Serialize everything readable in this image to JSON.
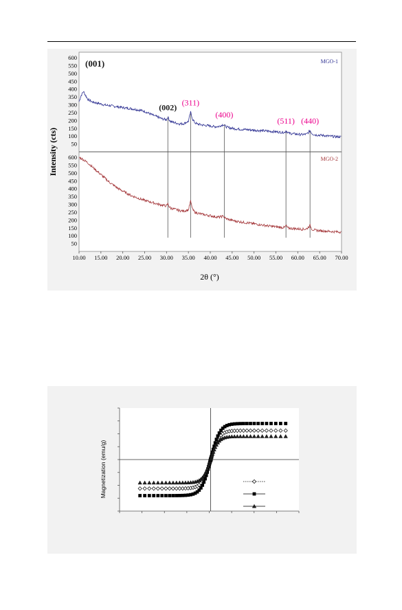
{
  "chart_data": [
    {
      "type": "line",
      "title": "",
      "xlabel": "2θ (°)",
      "ylabel": "Intensity (cts)",
      "x_ticks": [
        "10.00",
        "15.00",
        "20.00",
        "25.00",
        "30.00",
        "35.00",
        "40.00",
        "45.00",
        "50.00",
        "55.00",
        "60.00",
        "65.00",
        "70.00"
      ],
      "xlim": [
        10,
        70
      ],
      "panels": [
        {
          "name": "MGO-1",
          "ylim": [
            0,
            600
          ],
          "y_ticks": [
            "50",
            "100",
            "150",
            "200",
            "250",
            "300",
            "350",
            "400",
            "450",
            "500",
            "550",
            "600"
          ],
          "color": "#2e3192",
          "points": [
            [
              10,
              320
            ],
            [
              10.5,
              360
            ],
            [
              11,
              385
            ],
            [
              11.5,
              360
            ],
            [
              12,
              335
            ],
            [
              13,
              318
            ],
            [
              14,
              312
            ],
            [
              15,
              305
            ],
            [
              16,
              298
            ],
            [
              17,
              295
            ],
            [
              18,
              290
            ],
            [
              19,
              287
            ],
            [
              20,
              282
            ],
            [
              21,
              278
            ],
            [
              22,
              275
            ],
            [
              23,
              270
            ],
            [
              24,
              265
            ],
            [
              25,
              258
            ],
            [
              26,
              245
            ],
            [
              27,
              232
            ],
            [
              28,
              222
            ],
            [
              29,
              210
            ],
            [
              30,
              205
            ],
            [
              30.3,
              220
            ],
            [
              30.6,
              205
            ],
            [
              31,
              192
            ],
            [
              32,
              185
            ],
            [
              33,
              178
            ],
            [
              34,
              180
            ],
            [
              35,
              195
            ],
            [
              35.5,
              252
            ],
            [
              36,
              205
            ],
            [
              36.5,
              185
            ],
            [
              37,
              178
            ],
            [
              38,
              172
            ],
            [
              39,
              168
            ],
            [
              40,
              165
            ],
            [
              41,
              160
            ],
            [
              42,
              162
            ],
            [
              43,
              175
            ],
            [
              43.5,
              162
            ],
            [
              44,
              155
            ],
            [
              45,
              150
            ],
            [
              46,
              146
            ],
            [
              47,
              144
            ],
            [
              48,
              142
            ],
            [
              49,
              140
            ],
            [
              50,
              138
            ],
            [
              51,
              136
            ],
            [
              52,
              134
            ],
            [
              53,
              132
            ],
            [
              54,
              130
            ],
            [
              55,
              128
            ],
            [
              56,
              125
            ],
            [
              57,
              124
            ],
            [
              57.3,
              135
            ],
            [
              57.7,
              124
            ],
            [
              58,
              118
            ],
            [
              59,
              115
            ],
            [
              60,
              112
            ],
            [
              61,
              110
            ],
            [
              62,
              112
            ],
            [
              62.8,
              135
            ],
            [
              63.3,
              115
            ],
            [
              64,
              108
            ],
            [
              65,
              106
            ],
            [
              66,
              104
            ],
            [
              67,
              100
            ],
            [
              68,
              98
            ],
            [
              69,
              96
            ],
            [
              70,
              95
            ]
          ]
        },
        {
          "name": "MGO-2",
          "ylim": [
            0,
            600
          ],
          "y_ticks": [
            "50",
            "100",
            "150",
            "200",
            "250",
            "300",
            "350",
            "400",
            "450",
            "500",
            "550",
            "600"
          ],
          "color": "#a4373a",
          "points": [
            [
              10,
              600
            ],
            [
              11,
              585
            ],
            [
              12,
              565
            ],
            [
              13,
              540
            ],
            [
              14,
              515
            ],
            [
              15,
              490
            ],
            [
              16,
              465
            ],
            [
              17,
              440
            ],
            [
              18,
              420
            ],
            [
              19,
              400
            ],
            [
              20,
              385
            ],
            [
              21,
              370
            ],
            [
              22,
              355
            ],
            [
              23,
              345
            ],
            [
              24,
              335
            ],
            [
              25,
              325
            ],
            [
              26,
              318
            ],
            [
              27,
              310
            ],
            [
              28,
              302
            ],
            [
              29,
              295
            ],
            [
              30,
              290
            ],
            [
              30.3,
              305
            ],
            [
              30.6,
              285
            ],
            [
              31,
              275
            ],
            [
              32,
              268
            ],
            [
              33,
              260
            ],
            [
              34,
              258
            ],
            [
              35,
              265
            ],
            [
              35.5,
              320
            ],
            [
              36,
              265
            ],
            [
              36.5,
              250
            ],
            [
              37,
              245
            ],
            [
              38,
              238
            ],
            [
              39,
              232
            ],
            [
              40,
              228
            ],
            [
              41,
              222
            ],
            [
              42,
              218
            ],
            [
              43,
              225
            ],
            [
              43.5,
              210
            ],
            [
              44,
              205
            ],
            [
              45,
              198
            ],
            [
              46,
              192
            ],
            [
              47,
              188
            ],
            [
              48,
              184
            ],
            [
              49,
              180
            ],
            [
              50,
              176
            ],
            [
              51,
              172
            ],
            [
              52,
              168
            ],
            [
              53,
              164
            ],
            [
              54,
              160
            ],
            [
              55,
              157
            ],
            [
              56,
              154
            ],
            [
              57,
              152
            ],
            [
              57.3,
              165
            ],
            [
              57.7,
              150
            ],
            [
              58,
              148
            ],
            [
              59,
              146
            ],
            [
              60,
              144
            ],
            [
              61,
              142
            ],
            [
              62,
              143
            ],
            [
              62.8,
              165
            ],
            [
              63.3,
              140
            ],
            [
              64,
              135
            ],
            [
              65,
              132
            ],
            [
              66,
              130
            ],
            [
              67,
              128
            ],
            [
              68,
              126
            ],
            [
              69,
              125
            ],
            [
              70,
              124
            ]
          ]
        }
      ],
      "reflections": [
        {
          "label": "(002)",
          "two_theta": 30.3,
          "height": 222,
          "color": "#1a1a1a"
        },
        {
          "label": "(311)",
          "two_theta": 35.5,
          "height": 252,
          "color": "#ec008c"
        },
        {
          "label": "(400)",
          "two_theta": 43.2,
          "height": 175,
          "color": "#ec008c"
        },
        {
          "label": "(511)",
          "two_theta": 57.3,
          "height": 135,
          "color": "#ec008c"
        },
        {
          "label": "(440)",
          "two_theta": 62.8,
          "height": 135,
          "color": "#ec008c"
        }
      ],
      "annotation_001": "(001)"
    },
    {
      "type": "scatter",
      "title": "",
      "ylabel": "Magnetization (emu/g)",
      "xlim": [
        -20000,
        20000
      ],
      "ylim": [
        -40,
        40
      ],
      "x_tick_count": 8,
      "y_tick_count": 8,
      "legend_position": "lower-right",
      "series": [
        {
          "marker": "diamond-open",
          "line": "dotted",
          "ms": 22.5,
          "hk": 1200
        },
        {
          "marker": "square-filled",
          "line": "solid",
          "ms": 28,
          "hk": 1300
        },
        {
          "marker": "triangle-filled",
          "line": "solid",
          "ms": 18,
          "hk": 1100
        }
      ]
    }
  ]
}
